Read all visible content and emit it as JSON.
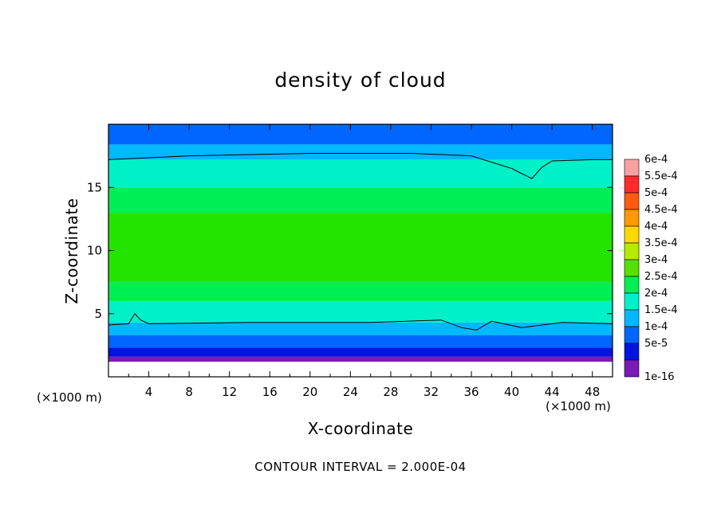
{
  "chart_data": {
    "type": "heatmap",
    "title": "density of cloud",
    "xlabel": "X-coordinate",
    "ylabel": "Z-coordinate",
    "x_unit_label": "(×1000 m)",
    "footer": "CONTOUR INTERVAL = 2.000E-04",
    "xlim": [
      0,
      50
    ],
    "ylim": [
      0,
      20
    ],
    "x_ticks": [
      4,
      8,
      12,
      16,
      20,
      24,
      28,
      32,
      36,
      40,
      44,
      48
    ],
    "y_ticks": [
      5,
      10,
      15
    ],
    "colorbar": {
      "labels": [
        "6e-4",
        "5.5e-4",
        "5e-4",
        "4.5e-4",
        "4e-4",
        "3.5e-4",
        "3e-4",
        "2.5e-4",
        "2e-4",
        "1.5e-4",
        "1e-4",
        "5e-5",
        "1e-16"
      ],
      "colors": [
        "#f9a0a0",
        "#ff2a2a",
        "#ff5a10",
        "#ff9a00",
        "#ffd800",
        "#b8ea00",
        "#55e000",
        "#00ee55",
        "#00f0c8",
        "#00b8ff",
        "#0066ff",
        "#0014e0",
        "#7a1ab8"
      ]
    },
    "bands": [
      {
        "z0": 0.0,
        "z1": 1.2,
        "value": "none",
        "color": "#ffffff"
      },
      {
        "z0": 1.2,
        "z1": 1.6,
        "value": "1e-16",
        "color": "#7a1ab8"
      },
      {
        "z0": 1.6,
        "z1": 2.3,
        "value": "5e-5",
        "color": "#0014e0"
      },
      {
        "z0": 2.3,
        "z1": 3.3,
        "value": "1e-4",
        "color": "#0066ff"
      },
      {
        "z0": 3.3,
        "z1": 4.3,
        "value": "1.5e-4",
        "color": "#00b8ff"
      },
      {
        "z0": 4.3,
        "z1": 6.0,
        "value": "2e-4",
        "color": "#00f0c8"
      },
      {
        "z0": 6.0,
        "z1": 7.5,
        "value": "2.5e-4",
        "color": "#00ee55"
      },
      {
        "z0": 7.5,
        "z1": 13.0,
        "value": "3e-4",
        "color": "#22e400"
      },
      {
        "z0": 13.0,
        "z1": 15.0,
        "value": "2.5e-4",
        "color": "#00ee55"
      },
      {
        "z0": 15.0,
        "z1": 17.2,
        "value": "2e-4",
        "color": "#00f0c8"
      },
      {
        "z0": 17.2,
        "z1": 18.4,
        "value": "1.5e-4",
        "color": "#00b8ff"
      },
      {
        "z0": 18.4,
        "z1": 20.0,
        "value": "1e-4",
        "color": "#0066ff"
      }
    ],
    "contour_2e-4_top": [
      [
        0,
        17.2
      ],
      [
        8,
        17.5
      ],
      [
        20,
        17.7
      ],
      [
        30,
        17.7
      ],
      [
        36,
        17.5
      ],
      [
        40,
        16.5
      ],
      [
        42,
        15.7
      ],
      [
        43,
        16.6
      ],
      [
        44,
        17.1
      ],
      [
        48,
        17.2
      ],
      [
        50,
        17.2
      ]
    ],
    "contour_2e-4_bottom": [
      [
        0,
        4.1
      ],
      [
        2,
        4.2
      ],
      [
        2.6,
        5.0
      ],
      [
        3.2,
        4.5
      ],
      [
        4,
        4.2
      ],
      [
        14,
        4.3
      ],
      [
        26,
        4.3
      ],
      [
        33,
        4.5
      ],
      [
        35,
        3.9
      ],
      [
        36.5,
        3.7
      ],
      [
        38,
        4.4
      ],
      [
        41,
        3.9
      ],
      [
        45,
        4.3
      ],
      [
        50,
        4.2
      ]
    ]
  }
}
